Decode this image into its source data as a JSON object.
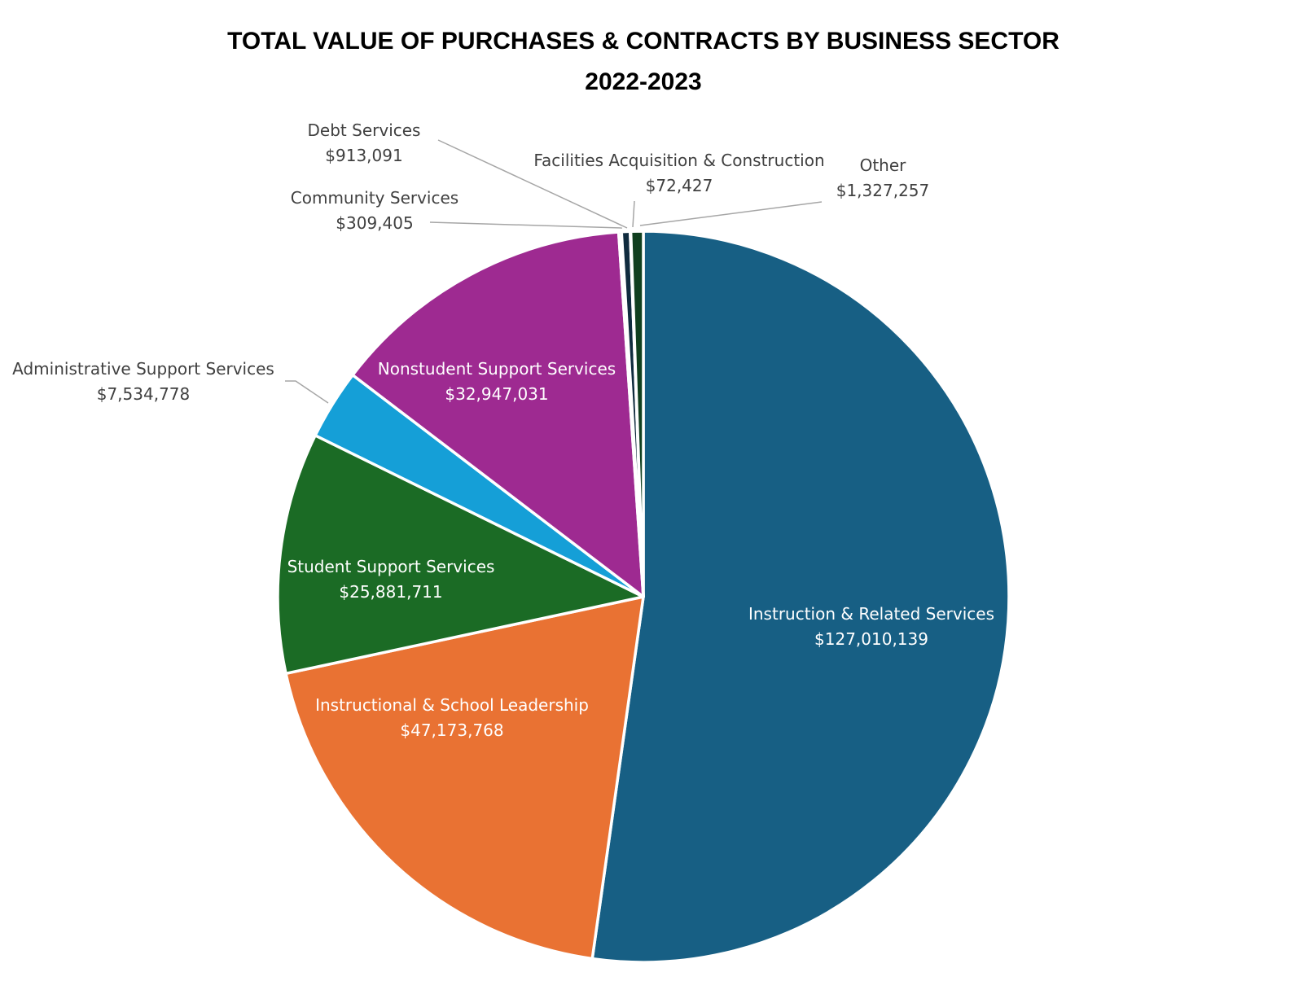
{
  "chart_data": {
    "type": "pie",
    "title": "TOTAL VALUE OF PURCHASES & CONTRACTS BY BUSINESS SECTOR",
    "subtitle": "2022-2023",
    "start_angle_deg": 0,
    "direction": "clockwise",
    "legend": "none",
    "slices": [
      {
        "name": "Instruction & Related Services",
        "value": 127010139,
        "value_label": "$127,010,139",
        "color": "#175f84",
        "label_position": "inside"
      },
      {
        "name": "Instructional & School Leadership",
        "value": 47173768,
        "value_label": "$47,173,768",
        "color": "#e97233",
        "label_position": "inside"
      },
      {
        "name": "Student Support Services",
        "value": 25881711,
        "value_label": "$25,881,711",
        "color": "#1b6b25",
        "label_position": "inside"
      },
      {
        "name": "Administrative Support Services",
        "value": 7534778,
        "value_label": "$7,534,778",
        "color": "#159fd7",
        "label_position": "outside"
      },
      {
        "name": "Nonstudent Support Services",
        "value": 32947031,
        "value_label": "$32,947,031",
        "color": "#9e2a91",
        "label_position": "inside"
      },
      {
        "name": "Community Services",
        "value": 309405,
        "value_label": "$309,405",
        "color": "#0d3c55",
        "label_position": "outside"
      },
      {
        "name": "Debt Services",
        "value": 913091,
        "value_label": "$913,091",
        "color": "#0f2b3e",
        "label_position": "outside"
      },
      {
        "name": "Facilities Acquisition & Construction",
        "value": 72427,
        "value_label": "$72,427",
        "color": "#1b3a26",
        "label_position": "outside"
      },
      {
        "name": "Other",
        "value": 1327257,
        "value_label": "$1,327,257",
        "color": "#103f1f",
        "label_position": "outside"
      }
    ]
  }
}
